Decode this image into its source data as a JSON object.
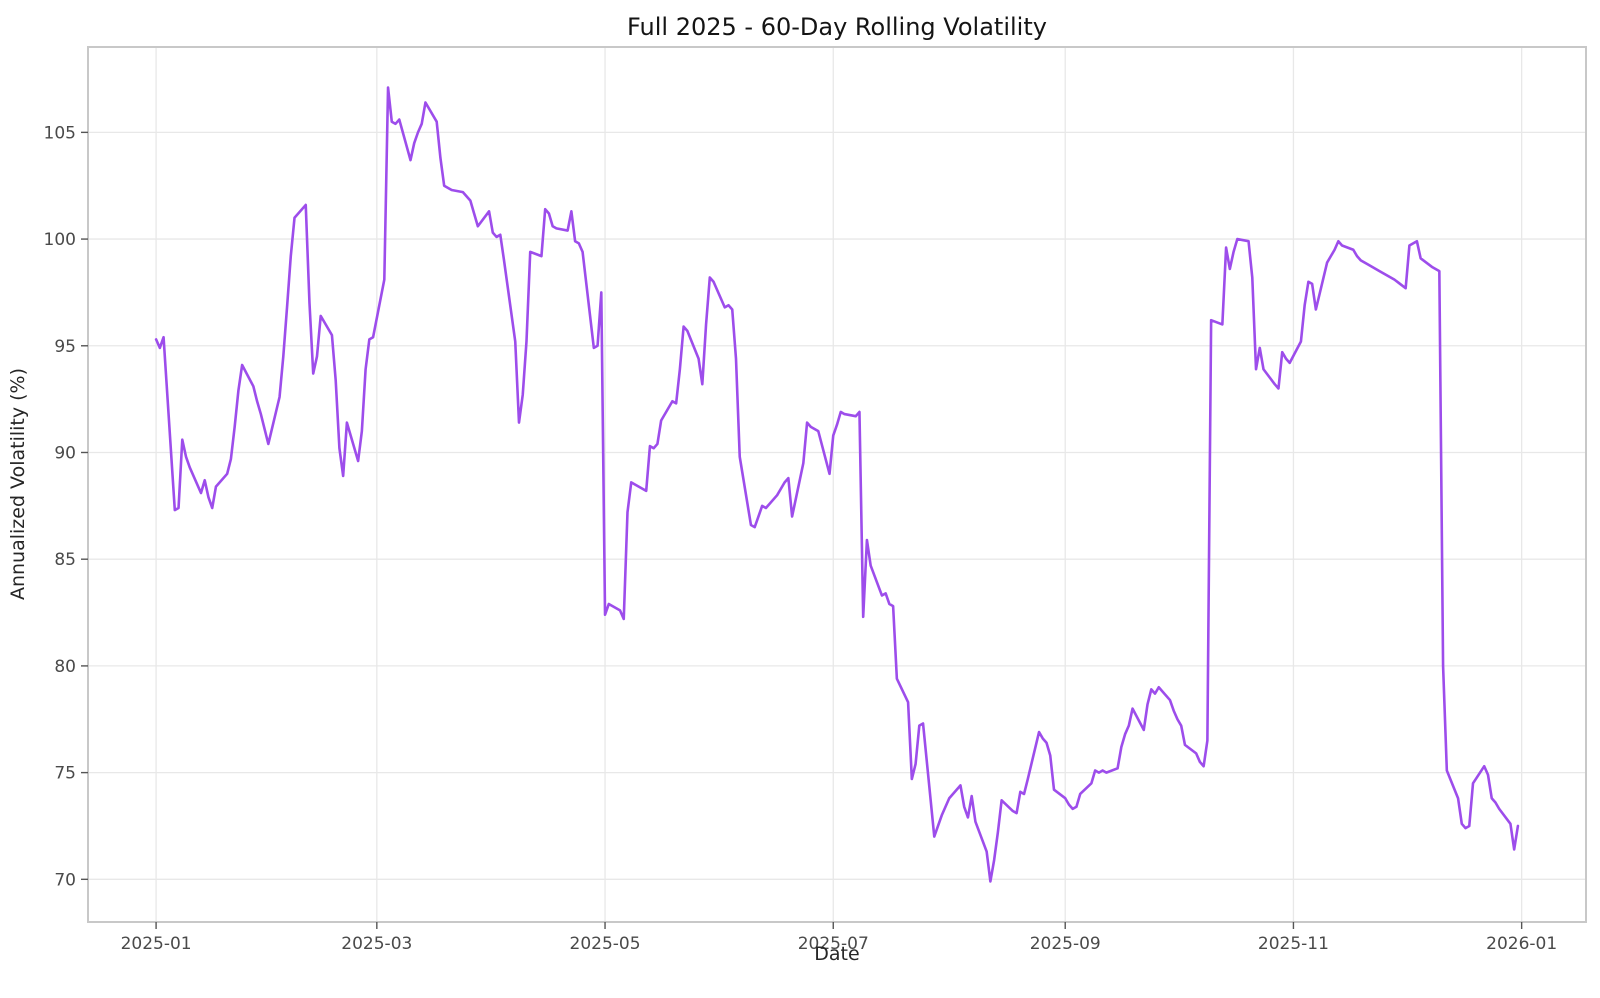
{
  "title": "Full 2025 - 60-Day Rolling Volatility",
  "colors": {
    "line": "#9d4deb",
    "grid": "#e8e8e8",
    "spine": "#c8c8c8",
    "tick_mark": "#555555",
    "tick_label": "#4a4a4a",
    "axis_label": "#262626",
    "title": "#141414",
    "background": "#ffffff"
  },
  "chart_data": {
    "type": "line",
    "title": "Full 2025 - 60-Day Rolling Volatility",
    "xlabel": "Date",
    "ylabel": "Annualized Volatility (%)",
    "legend_position": "none",
    "grid": true,
    "ylim": [
      68.0,
      109.0
    ],
    "y_ticks": [
      70,
      75,
      80,
      85,
      90,
      95,
      100,
      105
    ],
    "x_ticks": [
      {
        "date": "2025-01-01",
        "label": "2025-01"
      },
      {
        "date": "2025-03-01",
        "label": "2025-03"
      },
      {
        "date": "2025-05-01",
        "label": "2025-05"
      },
      {
        "date": "2025-07-01",
        "label": "2025-07"
      },
      {
        "date": "2025-09-01",
        "label": "2025-09"
      },
      {
        "date": "2025-11-01",
        "label": "2025-11"
      },
      {
        "date": "2026-01-01",
        "label": "2026-01"
      }
    ],
    "series": [
      {
        "name": "60-Day Rolling Volatility",
        "color": "#9d4deb",
        "dates": [
          "2025-01-01",
          "2025-01-02",
          "2025-01-03",
          "2025-01-06",
          "2025-01-07",
          "2025-01-08",
          "2025-01-09",
          "2025-01-10",
          "2025-01-13",
          "2025-01-14",
          "2025-01-15",
          "2025-01-16",
          "2025-01-17",
          "2025-01-20",
          "2025-01-21",
          "2025-01-22",
          "2025-01-23",
          "2025-01-24",
          "2025-01-27",
          "2025-01-28",
          "2025-01-29",
          "2025-01-30",
          "2025-01-31",
          "2025-02-03",
          "2025-02-04",
          "2025-02-05",
          "2025-02-06",
          "2025-02-07",
          "2025-02-10",
          "2025-02-11",
          "2025-02-12",
          "2025-02-13",
          "2025-02-14",
          "2025-02-17",
          "2025-02-18",
          "2025-02-19",
          "2025-02-20",
          "2025-02-21",
          "2025-02-24",
          "2025-02-25",
          "2025-02-26",
          "2025-02-27",
          "2025-02-28",
          "2025-03-03",
          "2025-03-04",
          "2025-03-05",
          "2025-03-06",
          "2025-03-07",
          "2025-03-10",
          "2025-03-11",
          "2025-03-12",
          "2025-03-13",
          "2025-03-14",
          "2025-03-17",
          "2025-03-18",
          "2025-03-19",
          "2025-03-20",
          "2025-03-21",
          "2025-03-24",
          "2025-03-25",
          "2025-03-26",
          "2025-03-27",
          "2025-03-28",
          "2025-03-31",
          "2025-04-01",
          "2025-04-02",
          "2025-04-03",
          "2025-04-04",
          "2025-04-07",
          "2025-04-08",
          "2025-04-09",
          "2025-04-10",
          "2025-04-11",
          "2025-04-14",
          "2025-04-15",
          "2025-04-16",
          "2025-04-17",
          "2025-04-18",
          "2025-04-21",
          "2025-04-22",
          "2025-04-23",
          "2025-04-24",
          "2025-04-25",
          "2025-04-28",
          "2025-04-29",
          "2025-04-30",
          "2025-05-01",
          "2025-05-02",
          "2025-05-05",
          "2025-05-06",
          "2025-05-07",
          "2025-05-08",
          "2025-05-09",
          "2025-05-12",
          "2025-05-13",
          "2025-05-14",
          "2025-05-15",
          "2025-05-16",
          "2025-05-19",
          "2025-05-20",
          "2025-05-21",
          "2025-05-22",
          "2025-05-23",
          "2025-05-26",
          "2025-05-27",
          "2025-05-28",
          "2025-05-29",
          "2025-05-30",
          "2025-06-02",
          "2025-06-03",
          "2025-06-04",
          "2025-06-05",
          "2025-06-06",
          "2025-06-09",
          "2025-06-10",
          "2025-06-11",
          "2025-06-12",
          "2025-06-13",
          "2025-06-16",
          "2025-06-17",
          "2025-06-18",
          "2025-06-19",
          "2025-06-20",
          "2025-06-23",
          "2025-06-24",
          "2025-06-25",
          "2025-06-26",
          "2025-06-27",
          "2025-06-30",
          "2025-07-01",
          "2025-07-02",
          "2025-07-03",
          "2025-07-04",
          "2025-07-07",
          "2025-07-08",
          "2025-07-09",
          "2025-07-10",
          "2025-07-11",
          "2025-07-14",
          "2025-07-15",
          "2025-07-16",
          "2025-07-17",
          "2025-07-18",
          "2025-07-21",
          "2025-07-22",
          "2025-07-23",
          "2025-07-24",
          "2025-07-25",
          "2025-07-28",
          "2025-07-29",
          "2025-07-30",
          "2025-07-31",
          "2025-08-01",
          "2025-08-04",
          "2025-08-05",
          "2025-08-06",
          "2025-08-07",
          "2025-08-08",
          "2025-08-11",
          "2025-08-12",
          "2025-08-13",
          "2025-08-14",
          "2025-08-15",
          "2025-08-18",
          "2025-08-19",
          "2025-08-20",
          "2025-08-21",
          "2025-08-22",
          "2025-08-25",
          "2025-08-26",
          "2025-08-27",
          "2025-08-28",
          "2025-08-29",
          "2025-09-01",
          "2025-09-02",
          "2025-09-03",
          "2025-09-04",
          "2025-09-05",
          "2025-09-08",
          "2025-09-09",
          "2025-09-10",
          "2025-09-11",
          "2025-09-12",
          "2025-09-15",
          "2025-09-16",
          "2025-09-17",
          "2025-09-18",
          "2025-09-19",
          "2025-09-22",
          "2025-09-23",
          "2025-09-24",
          "2025-09-25",
          "2025-09-26",
          "2025-09-29",
          "2025-09-30",
          "2025-10-01",
          "2025-10-02",
          "2025-10-03",
          "2025-10-06",
          "2025-10-07",
          "2025-10-08",
          "2025-10-09",
          "2025-10-10",
          "2025-10-13",
          "2025-10-14",
          "2025-10-15",
          "2025-10-16",
          "2025-10-17",
          "2025-10-20",
          "2025-10-21",
          "2025-10-22",
          "2025-10-23",
          "2025-10-24",
          "2025-10-27",
          "2025-10-28",
          "2025-10-29",
          "2025-10-30",
          "2025-10-31",
          "2025-11-03",
          "2025-11-04",
          "2025-11-05",
          "2025-11-06",
          "2025-11-07",
          "2025-11-10",
          "2025-11-11",
          "2025-11-12",
          "2025-11-13",
          "2025-11-14",
          "2025-11-17",
          "2025-11-18",
          "2025-11-19",
          "2025-11-20",
          "2025-11-21",
          "2025-11-24",
          "2025-11-25",
          "2025-11-26",
          "2025-11-27",
          "2025-11-28",
          "2025-12-01",
          "2025-12-02",
          "2025-12-03",
          "2025-12-04",
          "2025-12-05",
          "2025-12-08",
          "2025-12-09",
          "2025-12-10",
          "2025-12-11",
          "2025-12-12",
          "2025-12-15",
          "2025-12-16",
          "2025-12-17",
          "2025-12-18",
          "2025-12-19",
          "2025-12-22",
          "2025-12-23",
          "2025-12-24",
          "2025-12-25",
          "2025-12-26",
          "2025-12-29",
          "2025-12-30",
          "2025-12-31"
        ],
        "values": [
          95.3,
          94.9,
          95.4,
          87.3,
          87.4,
          90.6,
          89.8,
          89.3,
          88.1,
          88.7,
          87.9,
          87.4,
          88.4,
          89.0,
          89.7,
          91.2,
          92.9,
          94.1,
          93.1,
          92.4,
          91.8,
          91.1,
          90.4,
          92.6,
          94.5,
          96.8,
          99.2,
          101.0,
          101.6,
          97.0,
          93.7,
          94.5,
          96.4,
          95.5,
          93.4,
          90.2,
          88.9,
          91.4,
          89.6,
          91.0,
          93.9,
          95.3,
          95.4,
          98.1,
          107.1,
          105.5,
          105.4,
          105.6,
          103.7,
          104.5,
          105.0,
          105.4,
          106.4,
          105.5,
          103.8,
          102.5,
          102.4,
          102.3,
          102.2,
          102.0,
          101.8,
          101.2,
          100.6,
          101.3,
          100.3,
          100.1,
          100.2,
          99.0,
          95.2,
          91.4,
          92.7,
          95.2,
          99.4,
          99.2,
          101.4,
          101.2,
          100.6,
          100.5,
          100.4,
          101.3,
          99.9,
          99.8,
          99.4,
          94.9,
          95.0,
          97.5,
          82.4,
          82.9,
          82.6,
          82.2,
          87.2,
          88.6,
          88.5,
          88.2,
          90.3,
          90.2,
          90.4,
          91.5,
          92.4,
          92.3,
          93.9,
          95.9,
          95.7,
          94.4,
          93.2,
          96.0,
          98.2,
          98.0,
          96.8,
          96.9,
          96.7,
          94.4,
          89.8,
          86.6,
          86.5,
          87.0,
          87.5,
          87.4,
          88.0,
          88.3,
          88.6,
          88.8,
          87.0,
          89.5,
          91.4,
          91.2,
          91.1,
          91.0,
          89.0,
          90.8,
          91.3,
          91.9,
          91.8,
          91.7,
          91.9,
          82.3,
          85.9,
          84.7,
          83.3,
          83.4,
          82.9,
          82.8,
          79.4,
          78.3,
          74.7,
          75.4,
          77.2,
          77.3,
          72.0,
          72.5,
          73.0,
          73.4,
          73.8,
          74.4,
          73.4,
          72.9,
          73.9,
          72.7,
          71.3,
          69.9,
          70.9,
          72.2,
          73.7,
          73.2,
          73.1,
          74.1,
          74.0,
          74.7,
          76.9,
          76.6,
          76.4,
          75.8,
          74.2,
          73.8,
          73.5,
          73.3,
          73.4,
          74.0,
          74.5,
          75.1,
          75.0,
          75.1,
          75.0,
          75.2,
          76.2,
          76.8,
          77.2,
          78.0,
          77.0,
          78.2,
          78.9,
          78.7,
          79.0,
          78.4,
          77.9,
          77.5,
          77.2,
          76.3,
          75.9,
          75.5,
          75.3,
          76.5,
          96.2,
          96.0,
          99.6,
          98.6,
          99.4,
          100.0,
          99.9,
          98.2,
          93.9,
          94.9,
          93.9,
          93.2,
          93.0,
          94.7,
          94.4,
          94.2,
          95.2,
          96.9,
          98.0,
          97.9,
          96.7,
          98.9,
          99.2,
          99.5,
          99.9,
          99.7,
          99.5,
          99.2,
          99.0,
          98.9,
          98.8,
          98.5,
          98.4,
          98.3,
          98.2,
          98.1,
          97.7,
          99.7,
          99.8,
          99.9,
          99.1,
          98.7,
          98.6,
          98.5,
          80.0,
          75.1,
          73.8,
          72.6,
          72.4,
          72.5,
          74.5,
          75.3,
          74.9,
          73.8,
          73.6,
          73.3,
          72.6,
          71.4,
          72.5
        ]
      }
    ]
  }
}
